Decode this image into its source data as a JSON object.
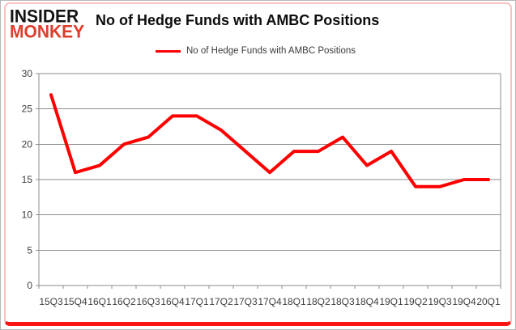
{
  "brand": {
    "line1": "INSIDER",
    "line2": "MONKEY",
    "color1": "#141414",
    "color2": "#dd3e2b"
  },
  "header": {
    "title": "No of Hedge Funds with AMBC Positions"
  },
  "legend": {
    "label": "No of Hedge Funds with AMBC Positions",
    "line_color": "#ff0000"
  },
  "chart_data": {
    "type": "line",
    "title": "No of Hedge Funds with AMBC Positions",
    "categories": [
      "15Q3",
      "15Q4",
      "16Q1",
      "16Q2",
      "16Q3",
      "16Q4",
      "17Q1",
      "17Q2",
      "17Q3",
      "17Q4",
      "18Q1",
      "18Q2",
      "18Q3",
      "18Q4",
      "19Q1",
      "19Q2",
      "19Q3",
      "19Q4",
      "20Q1"
    ],
    "series": [
      {
        "name": "No of Hedge Funds with AMBC Positions",
        "color": "#ff0000",
        "values": [
          27,
          16,
          17,
          20,
          21,
          24,
          24,
          22,
          19,
          16,
          19,
          19,
          21,
          17,
          19,
          14,
          14,
          15,
          15
        ]
      }
    ],
    "ylim": [
      0,
      30
    ],
    "ytick_step": 5,
    "xlabel": "",
    "ylabel": "",
    "grid": true,
    "legend_position": "top"
  },
  "colors": {
    "grid": "#8e8e8e",
    "axis_text": "#3d3d3d",
    "outer_border": "#b7b7b7",
    "card_border": "#f6c3c3",
    "card_bottom_bar": "#fb1414"
  }
}
